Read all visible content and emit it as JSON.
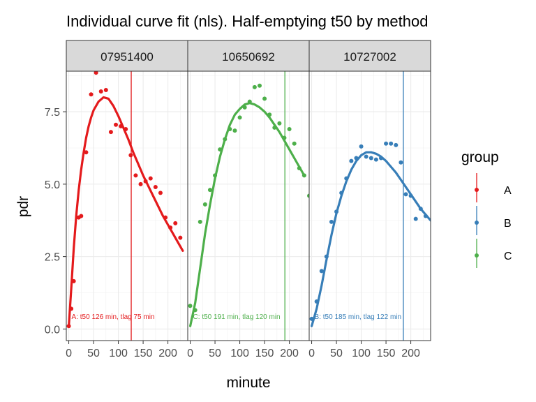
{
  "chart_data": {
    "type": "scatter",
    "title": "Individual curve fit (nls). Half-emptying t50 by method",
    "xlabel": "minute",
    "ylabel": "pdr",
    "xlim": [
      -5,
      240
    ],
    "ylim": [
      -0.4,
      8.9
    ],
    "x_ticks": [
      0,
      50,
      100,
      150,
      200
    ],
    "x_tick_labels": [
      "0",
      "50",
      "100",
      "150",
      "200"
    ],
    "y_ticks": [
      0.0,
      2.5,
      5.0,
      7.5
    ],
    "y_tick_labels": [
      "0.0",
      "2.5",
      "5.0",
      "7.5"
    ],
    "grid": true,
    "legend": {
      "title": "group",
      "position": "right",
      "entries": [
        "A",
        "B",
        "C"
      ]
    },
    "colors": {
      "A": "#e41a1c",
      "B": "#377eb8",
      "C": "#4daf4a"
    },
    "panels": [
      {
        "strip": "07951400",
        "group": "A",
        "t50": 126,
        "annotation": "A: t50 126 min, tlag 75 min",
        "points": [
          [
            0,
            0.1
          ],
          [
            5,
            0.7
          ],
          [
            10,
            1.65
          ],
          [
            20,
            3.85
          ],
          [
            25,
            3.9
          ],
          [
            35,
            6.1
          ],
          [
            45,
            8.1
          ],
          [
            55,
            8.85
          ],
          [
            65,
            8.2
          ],
          [
            75,
            8.25
          ],
          [
            85,
            6.8
          ],
          [
            95,
            7.05
          ],
          [
            105,
            7.0
          ],
          [
            115,
            6.9
          ],
          [
            125,
            6.0
          ],
          [
            135,
            5.3
          ],
          [
            145,
            5.0
          ],
          [
            155,
            5.1
          ],
          [
            165,
            5.2
          ],
          [
            175,
            4.9
          ],
          [
            185,
            4.7
          ],
          [
            195,
            3.85
          ],
          [
            205,
            3.5
          ],
          [
            215,
            3.65
          ],
          [
            225,
            3.15
          ]
        ],
        "fit": [
          [
            0,
            0.1
          ],
          [
            5,
            1.4
          ],
          [
            10,
            2.8
          ],
          [
            15,
            3.9
          ],
          [
            20,
            4.8
          ],
          [
            25,
            5.5
          ],
          [
            30,
            6.1
          ],
          [
            35,
            6.6
          ],
          [
            40,
            7.0
          ],
          [
            45,
            7.3
          ],
          [
            50,
            7.55
          ],
          [
            60,
            7.85
          ],
          [
            70,
            8.0
          ],
          [
            80,
            7.95
          ],
          [
            90,
            7.7
          ],
          [
            100,
            7.35
          ],
          [
            110,
            6.95
          ],
          [
            120,
            6.55
          ],
          [
            130,
            6.1
          ],
          [
            140,
            5.7
          ],
          [
            150,
            5.3
          ],
          [
            160,
            4.95
          ],
          [
            170,
            4.6
          ],
          [
            180,
            4.25
          ],
          [
            190,
            3.9
          ],
          [
            200,
            3.6
          ],
          [
            210,
            3.3
          ],
          [
            220,
            3.0
          ],
          [
            230,
            2.7
          ]
        ]
      },
      {
        "strip": "10650692",
        "group": "C",
        "t50": 191,
        "annotation": "C: t50 191 min, tlag 120 min",
        "points": [
          [
            0,
            0.8
          ],
          [
            10,
            0.65
          ],
          [
            20,
            3.7
          ],
          [
            30,
            4.3
          ],
          [
            40,
            4.8
          ],
          [
            50,
            5.3
          ],
          [
            60,
            6.2
          ],
          [
            70,
            6.55
          ],
          [
            80,
            6.9
          ],
          [
            90,
            6.85
          ],
          [
            100,
            7.3
          ],
          [
            110,
            7.65
          ],
          [
            120,
            7.85
          ],
          [
            130,
            8.35
          ],
          [
            140,
            8.4
          ],
          [
            150,
            7.95
          ],
          [
            160,
            7.4
          ],
          [
            170,
            6.95
          ],
          [
            180,
            7.1
          ],
          [
            190,
            6.6
          ],
          [
            200,
            6.9
          ],
          [
            210,
            6.4
          ],
          [
            220,
            5.55
          ],
          [
            230,
            5.3
          ],
          [
            240,
            4.6
          ]
        ],
        "fit": [
          [
            0,
            0.1
          ],
          [
            10,
            0.9
          ],
          [
            20,
            2.1
          ],
          [
            30,
            3.3
          ],
          [
            40,
            4.3
          ],
          [
            50,
            5.2
          ],
          [
            60,
            5.95
          ],
          [
            70,
            6.55
          ],
          [
            80,
            7.05
          ],
          [
            90,
            7.4
          ],
          [
            100,
            7.6
          ],
          [
            110,
            7.75
          ],
          [
            120,
            7.8
          ],
          [
            130,
            7.75
          ],
          [
            140,
            7.65
          ],
          [
            150,
            7.5
          ],
          [
            160,
            7.3
          ],
          [
            170,
            7.05
          ],
          [
            180,
            6.8
          ],
          [
            190,
            6.5
          ],
          [
            200,
            6.2
          ],
          [
            210,
            5.9
          ],
          [
            220,
            5.6
          ],
          [
            230,
            5.3
          ]
        ]
      },
      {
        "strip": "10727002",
        "group": "B",
        "t50": 185,
        "annotation": "B: t50 185 min, tlag 122 min",
        "points": [
          [
            0,
            0.35
          ],
          [
            10,
            0.95
          ],
          [
            20,
            2.0
          ],
          [
            30,
            2.5
          ],
          [
            40,
            3.7
          ],
          [
            50,
            4.05
          ],
          [
            60,
            4.7
          ],
          [
            70,
            5.2
          ],
          [
            80,
            5.8
          ],
          [
            90,
            5.9
          ],
          [
            100,
            6.3
          ],
          [
            110,
            5.95
          ],
          [
            120,
            5.9
          ],
          [
            130,
            5.85
          ],
          [
            140,
            5.9
          ],
          [
            150,
            6.4
          ],
          [
            160,
            6.4
          ],
          [
            170,
            6.35
          ],
          [
            180,
            5.75
          ],
          [
            190,
            4.65
          ],
          [
            200,
            4.6
          ],
          [
            210,
            3.8
          ],
          [
            220,
            4.15
          ],
          [
            230,
            3.9
          ]
        ],
        "fit": [
          [
            0,
            0.1
          ],
          [
            10,
            0.7
          ],
          [
            20,
            1.5
          ],
          [
            30,
            2.4
          ],
          [
            40,
            3.25
          ],
          [
            50,
            4.0
          ],
          [
            60,
            4.6
          ],
          [
            70,
            5.1
          ],
          [
            80,
            5.5
          ],
          [
            90,
            5.8
          ],
          [
            100,
            6.0
          ],
          [
            110,
            6.1
          ],
          [
            120,
            6.1
          ],
          [
            130,
            6.05
          ],
          [
            140,
            5.95
          ],
          [
            150,
            5.8
          ],
          [
            160,
            5.6
          ],
          [
            170,
            5.4
          ],
          [
            180,
            5.15
          ],
          [
            190,
            4.9
          ],
          [
            200,
            4.65
          ],
          [
            210,
            4.4
          ],
          [
            220,
            4.15
          ],
          [
            230,
            3.95
          ],
          [
            240,
            3.75
          ]
        ]
      }
    ]
  }
}
